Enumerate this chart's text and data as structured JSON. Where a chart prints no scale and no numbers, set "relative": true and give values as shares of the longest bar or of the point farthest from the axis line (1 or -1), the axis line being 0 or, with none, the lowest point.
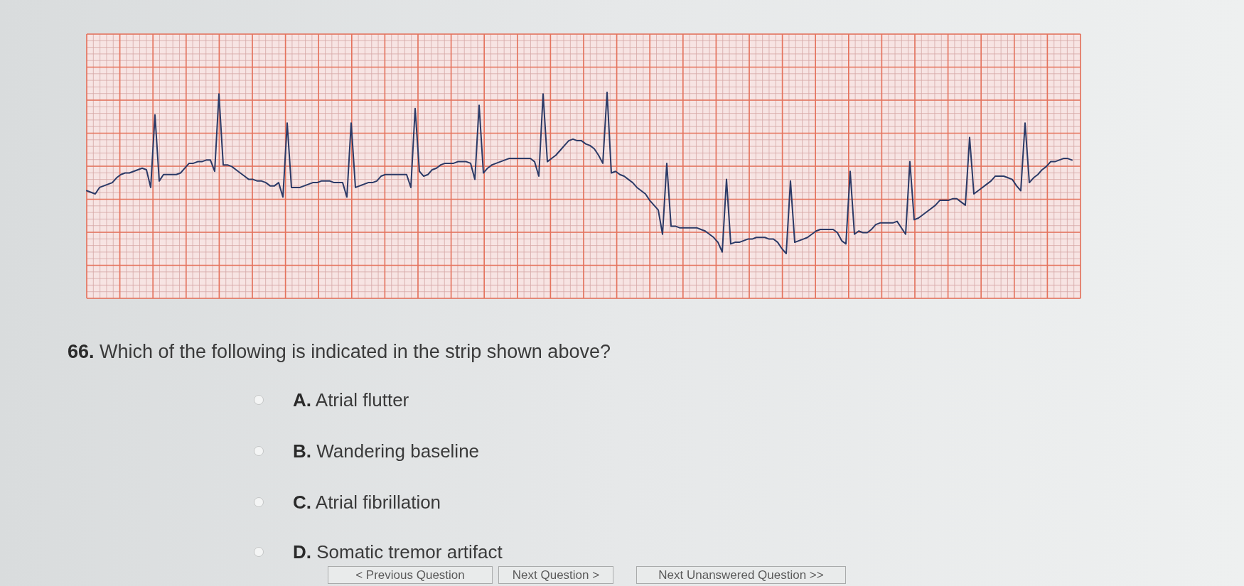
{
  "chart_data": {
    "type": "line",
    "relative": true,
    "grid": true,
    "color": "#2b3a67",
    "title": "66. Which of the following is indicated in the strip shown above?",
    "annotations": [
      "A. Atrial flutter",
      "B. Wandering baseline",
      "C. Atrial fibrillation",
      "D. Somatic tremor artifact",
      "< Previous Question",
      "Next Question >",
      "Next Unanswered Question >>"
    ],
    "categories": [
      null,
      null,
      null,
      null,
      null,
      null,
      null,
      null,
      null,
      null,
      null,
      null,
      null,
      null,
      null,
      null,
      null,
      null,
      null,
      null,
      null,
      null,
      null,
      null,
      null,
      null,
      null,
      null,
      null,
      null,
      null,
      null,
      null,
      null,
      null,
      null,
      null,
      null,
      null,
      null,
      null,
      null,
      null,
      null,
      null,
      null,
      null,
      null,
      null,
      null,
      null,
      null,
      null,
      null,
      null,
      null,
      null,
      null,
      null,
      null,
      null,
      null,
      null,
      null,
      null,
      null,
      null,
      null,
      null,
      null,
      null,
      null,
      null,
      null,
      null,
      null,
      null,
      null,
      null,
      null,
      null,
      null,
      null,
      null,
      null,
      null,
      null,
      null,
      null,
      null,
      null,
      null,
      null,
      null,
      null,
      null,
      null,
      null,
      null,
      null,
      null,
      null,
      null,
      null,
      null,
      null,
      null,
      null,
      null,
      null,
      null,
      null,
      null,
      null,
      null,
      null,
      null,
      null,
      null,
      null,
      null,
      null,
      null,
      null,
      null,
      null,
      null,
      null,
      null,
      null,
      null,
      null,
      null,
      null,
      null,
      null,
      null,
      null,
      null,
      null,
      null,
      null,
      null,
      null,
      null,
      null,
      null,
      null,
      null,
      null,
      null,
      null,
      null,
      null,
      null,
      null,
      null,
      null,
      null,
      null,
      null,
      null,
      null,
      null,
      null,
      null,
      null,
      null,
      null,
      null,
      null,
      null,
      null,
      null,
      null,
      null,
      null,
      null,
      null,
      null,
      null,
      null,
      null,
      null,
      null,
      null,
      null,
      null,
      null,
      null,
      null,
      null,
      null,
      null,
      null,
      null,
      null,
      null,
      null,
      null,
      null,
      null,
      null,
      null,
      null,
      null,
      null,
      null,
      null,
      null,
      null,
      null,
      null,
      null,
      null,
      null,
      null,
      null,
      null,
      null,
      null,
      null,
      null,
      null,
      null,
      null,
      null,
      null,
      null,
      null,
      null,
      null
    ],
    "values": [
      0.39,
      0.38,
      0.37,
      0.41,
      0.42,
      0.43,
      0.44,
      0.47,
      0.49,
      0.5,
      0.5,
      0.51,
      0.52,
      0.53,
      0.52,
      0.41,
      0.86,
      0.45,
      0.49,
      0.49,
      0.49,
      0.49,
      0.5,
      0.53,
      0.56,
      0.56,
      0.57,
      0.57,
      0.58,
      0.58,
      0.51,
      0.99,
      0.55,
      0.55,
      0.54,
      0.52,
      0.5,
      0.48,
      0.46,
      0.46,
      0.45,
      0.45,
      0.44,
      0.42,
      0.42,
      0.44,
      0.35,
      0.81,
      0.41,
      0.41,
      0.41,
      0.42,
      0.43,
      0.44,
      0.44,
      0.45,
      0.45,
      0.45,
      0.44,
      0.44,
      0.44,
      0.35,
      0.81,
      0.41,
      0.42,
      0.43,
      0.44,
      0.44,
      0.45,
      0.48,
      0.49,
      0.49,
      0.49,
      0.49,
      0.49,
      0.49,
      0.41,
      0.9,
      0.51,
      0.48,
      0.49,
      0.52,
      0.53,
      0.55,
      0.56,
      0.56,
      0.56,
      0.57,
      0.57,
      0.57,
      0.56,
      0.46,
      0.92,
      0.5,
      0.53,
      0.55,
      0.56,
      0.57,
      0.58,
      0.59,
      0.59,
      0.59,
      0.59,
      0.59,
      0.59,
      0.57,
      0.48,
      0.99,
      0.57,
      0.59,
      0.61,
      0.64,
      0.67,
      0.7,
      0.71,
      0.7,
      0.7,
      0.68,
      0.67,
      0.65,
      0.61,
      0.56,
      1,
      0.5,
      0.51,
      0.49,
      0.48,
      0.46,
      0.44,
      0.41,
      0.39,
      0.37,
      0.33,
      0.3,
      0.27,
      0.12,
      0.56,
      0.17,
      0.17,
      0.16,
      0.16,
      0.16,
      0.16,
      0.16,
      0.15,
      0.14,
      0.12,
      0.1,
      0.07,
      0.01,
      0.46,
      0.06,
      0.07,
      0.07,
      0.08,
      0.09,
      0.09,
      0.1,
      0.1,
      0.1,
      0.09,
      0.09,
      0.07,
      0.03,
      0,
      0.45,
      0.07,
      0.08,
      0.09,
      0.1,
      0.12,
      0.14,
      0.15,
      0.15,
      0.15,
      0.15,
      0.13,
      0.08,
      0.06,
      0.51,
      0.12,
      0.14,
      0.13,
      0.13,
      0.15,
      0.18,
      0.19,
      0.19,
      0.19,
      0.19,
      0.2,
      0.16,
      0.12,
      0.57,
      0.21,
      0.22,
      0.24,
      0.26,
      0.28,
      0.3,
      0.33,
      0.33,
      0.33,
      0.34,
      0.34,
      0.32,
      0.3,
      0.72,
      0.37,
      0.39,
      0.41,
      0.43,
      0.45,
      0.48,
      0.48,
      0.48,
      0.47,
      0.46,
      0.42,
      0.39,
      0.81,
      0.44,
      0.47,
      0.49,
      0.52,
      0.54,
      0.57,
      0.57,
      0.58,
      0.59,
      0.59,
      0.58
    ]
  }
}
